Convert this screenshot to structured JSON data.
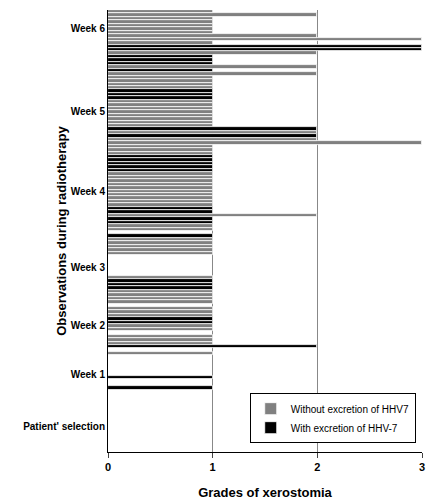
{
  "chart_data": {
    "type": "bar",
    "orientation": "horizontal",
    "x_label": "Grades of xerostomia",
    "y_label": "Observations during radiotherapy",
    "xlim": [
      0,
      3
    ],
    "xticks": [
      0,
      1,
      2,
      3
    ],
    "grid": true,
    "legend": "lower right",
    "categories": [
      null,
      null,
      null,
      null,
      null,
      null,
      null,
      "Patient' selection",
      null,
      null,
      null,
      null,
      null,
      null,
      null,
      null,
      null,
      null,
      null,
      null,
      null,
      null,
      "Week 1",
      null,
      null,
      null,
      null,
      null,
      null,
      null,
      null,
      null,
      null,
      null,
      null,
      null,
      "Week 2",
      null,
      null,
      null,
      null,
      null,
      null,
      null,
      null,
      null,
      null,
      null,
      null,
      null,
      null,
      null,
      null,
      "Week 3",
      null,
      null,
      null,
      null,
      null,
      null,
      null,
      null,
      null,
      null,
      null,
      null,
      null,
      null,
      null,
      null,
      null,
      null,
      null,
      null,
      null,
      "Week 4",
      null,
      null,
      null,
      null,
      null,
      null,
      null,
      null,
      null,
      null,
      null,
      null,
      null,
      null,
      null,
      null,
      null,
      null,
      null,
      null,
      null,
      null,
      "Week 5",
      null,
      null,
      null,
      null,
      null,
      null,
      null,
      null,
      null,
      null,
      null,
      null,
      null,
      null,
      null,
      null,
      null,
      null,
      null,
      null,
      null,
      null,
      null,
      "Week 6",
      null,
      null,
      null,
      null,
      null
    ],
    "series": [
      {
        "name": "Without excretion of HHV7",
        "color": "#808080",
        "values": [
          0,
          0,
          0,
          0,
          0,
          0,
          0,
          0,
          0,
          0,
          0,
          0,
          0,
          0,
          0,
          0,
          0,
          0,
          null,
          0,
          0,
          null,
          0,
          0,
          0,
          0,
          0,
          0,
          1,
          0,
          null,
          1,
          1,
          1,
          0,
          1,
          1,
          null,
          null,
          1,
          1,
          1,
          0,
          1,
          1,
          1,
          1,
          null,
          null,
          null,
          1,
          0,
          0,
          0,
          0,
          0,
          0,
          1,
          1,
          1,
          1,
          1,
          null,
          0,
          1,
          1,
          null,
          null,
          2,
          null,
          null,
          1,
          1,
          1,
          1,
          1,
          1,
          1,
          1,
          1,
          1,
          null,
          null,
          null,
          null,
          null,
          1,
          1,
          1,
          3,
          2,
          null,
          2,
          null,
          1,
          1,
          1,
          1,
          1,
          1,
          1,
          1,
          null,
          null,
          null,
          1,
          1,
          1,
          1,
          2,
          null,
          2,
          null,
          null,
          null,
          2,
          null,
          null,
          1,
          3,
          2,
          1,
          1,
          1,
          1,
          1,
          2,
          1
        ]
      },
      {
        "name": "With excretion of HHV-7",
        "color": "#000000",
        "values": [
          null,
          null,
          null,
          null,
          null,
          null,
          null,
          null,
          null,
          null,
          null,
          null,
          null,
          null,
          null,
          null,
          null,
          null,
          1,
          null,
          null,
          1,
          null,
          null,
          null,
          null,
          null,
          null,
          null,
          null,
          2,
          null,
          null,
          null,
          null,
          null,
          null,
          1,
          1,
          null,
          null,
          null,
          null,
          null,
          null,
          null,
          null,
          1,
          1,
          1,
          null,
          null,
          null,
          null,
          null,
          null,
          null,
          null,
          null,
          null,
          null,
          null,
          1,
          null,
          null,
          null,
          1,
          1,
          null,
          1,
          1,
          null,
          null,
          null,
          null,
          null,
          null,
          null,
          null,
          null,
          null,
          1,
          1,
          1,
          1,
          1,
          null,
          null,
          null,
          null,
          null,
          2,
          null,
          2,
          null,
          null,
          null,
          null,
          null,
          null,
          null,
          null,
          1,
          1,
          1,
          null,
          null,
          null,
          null,
          null,
          1,
          null,
          1,
          1,
          1,
          null,
          3,
          3,
          null,
          null,
          null,
          null,
          null,
          null,
          null,
          null,
          null,
          null
        ]
      }
    ]
  }
}
